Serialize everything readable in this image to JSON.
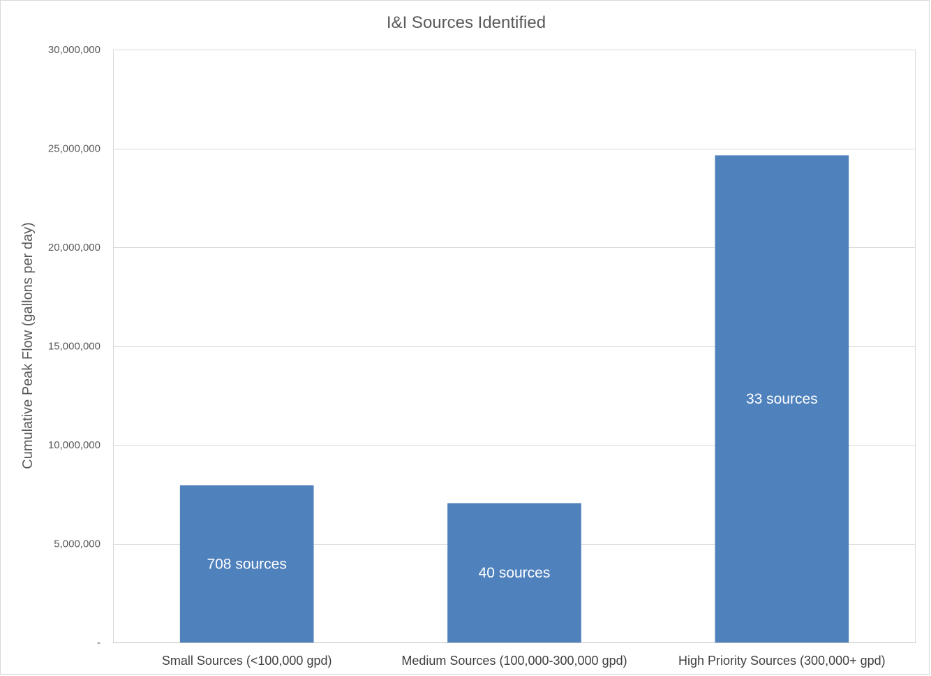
{
  "chart_data": {
    "type": "bar",
    "title": "I&I Sources Identified",
    "xlabel": "",
    "ylabel": "Cumulative Peak Flow (gallons per day)",
    "ylim": [
      0,
      30000000
    ],
    "y_ticks": [
      0,
      5000000,
      10000000,
      15000000,
      20000000,
      25000000,
      30000000
    ],
    "y_tick_labels": [
      "-",
      "5,000,000",
      "10,000,000",
      "15,000,000",
      "20,000,000",
      "25,000,000",
      "30,000,000"
    ],
    "categories": [
      "Small Sources (<100,000 gpd)",
      "Medium Sources (100,000-300,000 gpd)",
      "High Priority Sources (300,000+ gpd)"
    ],
    "values": [
      7950000,
      7050000,
      24650000
    ],
    "data_labels": [
      "708 sources",
      "40 sources",
      "33 sources"
    ],
    "grid": true,
    "legend": "none"
  },
  "colors": {
    "bar": "#4f81bd",
    "grid": "#d9d9d9",
    "axis": "#bfbfbf"
  }
}
